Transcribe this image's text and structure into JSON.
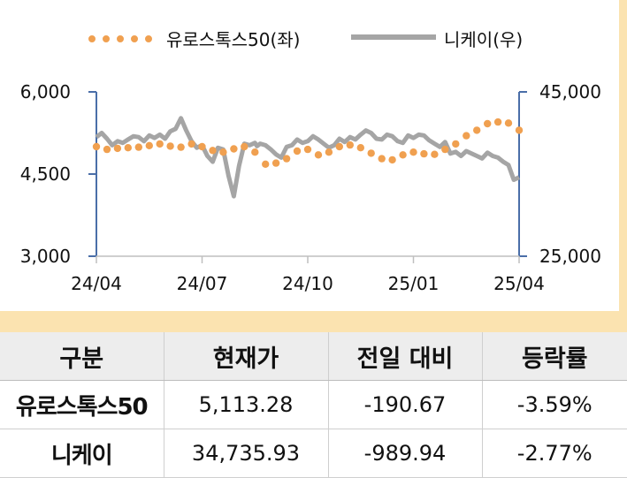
{
  "chart_data": {
    "type": "line",
    "title": "",
    "xlabel": "",
    "ylabel": "",
    "x_ticks": [
      "24/04",
      "24/07",
      "24/10",
      "25/01",
      "25/04"
    ],
    "y_left": {
      "ylim": [
        3000,
        6000
      ],
      "ticks": [
        "6,000",
        "4,500",
        "3,000"
      ],
      "tick_values": [
        6000,
        4500,
        3000
      ]
    },
    "y_right": {
      "ylim": [
        25000,
        45000
      ],
      "ticks": [
        "45,000",
        "25,000"
      ],
      "tick_values": [
        45000,
        25000
      ]
    },
    "grid": false,
    "legend_position": "top",
    "series": [
      {
        "name": "유로스톡스50(좌)",
        "axis": "left",
        "style": "dotted",
        "color": "#f0a050",
        "x": [
          0.0,
          0.1,
          0.2,
          0.3,
          0.4,
          0.5,
          0.6,
          0.7,
          0.8,
          0.9,
          1.0,
          1.1,
          1.2,
          1.3,
          1.4,
          1.5,
          1.6,
          1.7,
          1.8,
          1.9,
          2.0,
          2.1,
          2.2,
          2.3,
          2.4,
          2.5,
          2.6,
          2.7,
          2.8,
          2.9,
          3.0,
          3.1,
          3.2,
          3.3,
          3.4,
          3.5,
          3.6,
          3.7,
          3.8,
          3.9,
          4.0
        ],
        "values": [
          5000,
          4950,
          4970,
          4980,
          4990,
          5020,
          5050,
          5010,
          4990,
          5050,
          5000,
          4930,
          4900,
          4960,
          5000,
          4900,
          4680,
          4700,
          4780,
          4920,
          4950,
          4850,
          4900,
          5000,
          5030,
          4980,
          4880,
          4780,
          4760,
          4850,
          4900,
          4870,
          4860,
          4950,
          5050,
          5200,
          5300,
          5420,
          5450,
          5430,
          5300
        ]
      },
      {
        "name": "니케이(우)",
        "axis": "right",
        "style": "solid",
        "color": "#a5a5a5",
        "x": [
          0.0,
          0.05,
          0.1,
          0.15,
          0.2,
          0.25,
          0.3,
          0.35,
          0.4,
          0.45,
          0.5,
          0.55,
          0.6,
          0.65,
          0.7,
          0.75,
          0.8,
          0.85,
          0.9,
          0.95,
          1.0,
          1.05,
          1.1,
          1.15,
          1.2,
          1.25,
          1.3,
          1.35,
          1.4,
          1.45,
          1.5,
          1.52,
          1.55,
          1.6,
          1.65,
          1.7,
          1.75,
          1.8,
          1.85,
          1.9,
          1.95,
          2.0,
          2.05,
          2.1,
          2.15,
          2.2,
          2.25,
          2.3,
          2.35,
          2.4,
          2.45,
          2.5,
          2.55,
          2.6,
          2.65,
          2.7,
          2.75,
          2.8,
          2.85,
          2.9,
          2.95,
          3.0,
          3.05,
          3.1,
          3.15,
          3.2,
          3.25,
          3.3,
          3.35,
          3.4,
          3.45,
          3.5,
          3.55,
          3.6,
          3.65,
          3.7,
          3.75,
          3.8,
          3.85,
          3.9,
          3.95,
          4.0
        ],
        "values": [
          39500,
          40000,
          39300,
          38500,
          39000,
          38800,
          39200,
          39600,
          39500,
          39000,
          39700,
          39400,
          39800,
          39300,
          40200,
          40500,
          41800,
          40300,
          39000,
          38200,
          38500,
          37200,
          36500,
          38200,
          38000,
          34800,
          32300,
          36000,
          38700,
          38500,
          38800,
          38400,
          38700,
          38500,
          38000,
          37400,
          37000,
          38300,
          38500,
          39200,
          38800,
          39000,
          39600,
          39200,
          38700,
          38200,
          38500,
          39300,
          38900,
          39500,
          39200,
          39800,
          40300,
          40000,
          39300,
          39200,
          39800,
          39600,
          39000,
          38800,
          39700,
          39400,
          39800,
          39700,
          39100,
          38700,
          38300,
          38900,
          37500,
          37700,
          37200,
          37800,
          37500,
          37200,
          36900,
          37600,
          37200,
          37000,
          36500,
          36100,
          34300,
          34600
        ]
      }
    ]
  },
  "table": {
    "headers": [
      "구분",
      "현재가",
      "전일 대비",
      "등락률"
    ],
    "rows": [
      {
        "name": "유로스톡스50",
        "price": "5,113.28",
        "change": "-190.67",
        "rate": "-3.59%"
      },
      {
        "name": "니케이",
        "price": "34,735.93",
        "change": "-989.94",
        "rate": "-2.77%"
      }
    ]
  }
}
